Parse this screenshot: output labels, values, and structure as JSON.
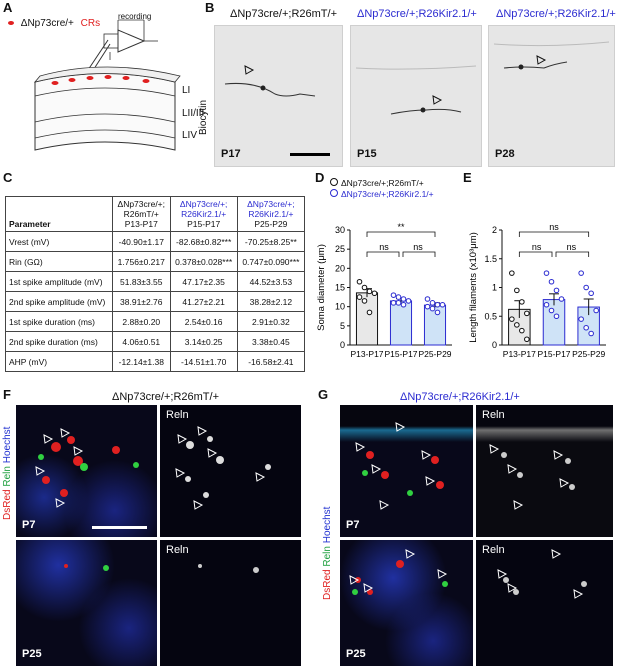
{
  "panels": {
    "A": {
      "label": "A",
      "legend_genotype": "ΔNp73cre/+",
      "legend_cells": "CRs",
      "recording": "recording",
      "layers": [
        "LI",
        "LII/III",
        "LIV"
      ]
    },
    "B": {
      "label": "B",
      "ylabel": "Biocytin",
      "images": [
        {
          "genotype": "ΔNp73cre/+;R26mT/+",
          "age": "P17"
        },
        {
          "genotype": "ΔNp73cre/+;R26Kir2.1/+",
          "age": "P15"
        },
        {
          "genotype": "ΔNp73cre/+;R26Kir2.1/+",
          "age": "P28"
        }
      ]
    },
    "C": {
      "label": "C",
      "header": {
        "param": "Parameter",
        "col1_geno": "ΔNp73cre/+; R26mT/+",
        "col1_age": "P13-P17",
        "col2_geno": "ΔNp73cre/+; R26Kir2.1/+",
        "col2_age": "P15-P17",
        "col3_geno": "ΔNp73cre/+; R26Kir2.1/+",
        "col3_age": "P25-P29"
      },
      "rows": [
        [
          "Vrest (mV)",
          "-40.90±1.17",
          "-82.68±0.82***",
          "-70.25±8.25**"
        ],
        [
          "Rin (GΩ)",
          "1.756±0.217",
          "0.378±0.028***",
          "0.747±0.090***"
        ],
        [
          "1st spike amplitude (mV)",
          "51.83±3.55",
          "47.17±2.35",
          "44.52±3.53"
        ],
        [
          "2nd spike amplitude (mV)",
          "38.91±2.76",
          "41.27±2.21",
          "38.28±2.12"
        ],
        [
          "1st spike duration (ms)",
          "2.88±0.20",
          "2.54±0.16",
          "2.91±0.32"
        ],
        [
          "2nd spike duration (ms)",
          "4.06±0.51",
          "3.14±0.25",
          "3.38±0.45"
        ],
        [
          "AHP (mV)",
          "-12.14±1.38",
          "-14.51±1.70",
          "-16.58±2.41"
        ]
      ]
    },
    "D": {
      "label": "D",
      "legend": [
        "ΔNp73cre/+;R26mT/+",
        "ΔNp73cre/+;R26Kir2.1/+"
      ],
      "sig": [
        "**",
        "ns",
        "ns"
      ]
    },
    "E": {
      "label": "E",
      "sig": [
        "ns",
        "ns",
        "ns"
      ]
    },
    "F": {
      "label": "F",
      "genotype": "ΔNp73cre/+;R26mT/+",
      "side_label": [
        "DsRed",
        "Reln",
        "Hoechst"
      ],
      "reln": "Reln",
      "ages": [
        "P7",
        "P25"
      ]
    },
    "G": {
      "label": "G",
      "genotype": "ΔNp73cre/+;R26Kir2.1/+",
      "side_label": [
        "DsRed",
        "Reln",
        "Hoechst"
      ],
      "reln": "Reln",
      "ages": [
        "P7",
        "P25"
      ]
    }
  },
  "colors": {
    "control": "#e8e8e8",
    "kir": "#cfe3f7",
    "kir_point": "#2b2bd0",
    "dsred": "#e02020",
    "reln": "#20c040",
    "hoechst": "#2030d0"
  },
  "chart_data": [
    {
      "type": "bar",
      "ylabel": "Soma diameter (μm)",
      "categories": [
        "P13-P17",
        "P15-P17",
        "P25-P29"
      ],
      "values": [
        13.6,
        11.5,
        10.4
      ],
      "errors": [
        1.1,
        0.6,
        0.6
      ],
      "points": [
        [
          16.5,
          15,
          14,
          13.5,
          12.5,
          11.5,
          8.5
        ],
        [
          13,
          12.5,
          12,
          11.5,
          11,
          11,
          10.5
        ],
        [
          12,
          11,
          10.5,
          10.5,
          10,
          9.5,
          8.5
        ]
      ],
      "ylim": [
        0,
        30
      ],
      "yticks": [
        0,
        5,
        10,
        15,
        20,
        25,
        30
      ]
    },
    {
      "type": "bar",
      "ylabel": "Length filaments (x10³μm)",
      "categories": [
        "P13-P17",
        "P15-P17",
        "P25-P29"
      ],
      "values": [
        0.62,
        0.79,
        0.66
      ],
      "errors": [
        0.15,
        0.1,
        0.14
      ],
      "points": [
        [
          1.25,
          0.95,
          0.75,
          0.55,
          0.45,
          0.35,
          0.25,
          0.1
        ],
        [
          1.25,
          1.1,
          0.95,
          0.8,
          0.7,
          0.6,
          0.5
        ],
        [
          1.25,
          1.0,
          0.9,
          0.6,
          0.45,
          0.3,
          0.2
        ]
      ],
      "ylim": [
        0,
        2.0
      ],
      "yticks": [
        0,
        0.5,
        1.0,
        1.5,
        2.0
      ]
    }
  ]
}
